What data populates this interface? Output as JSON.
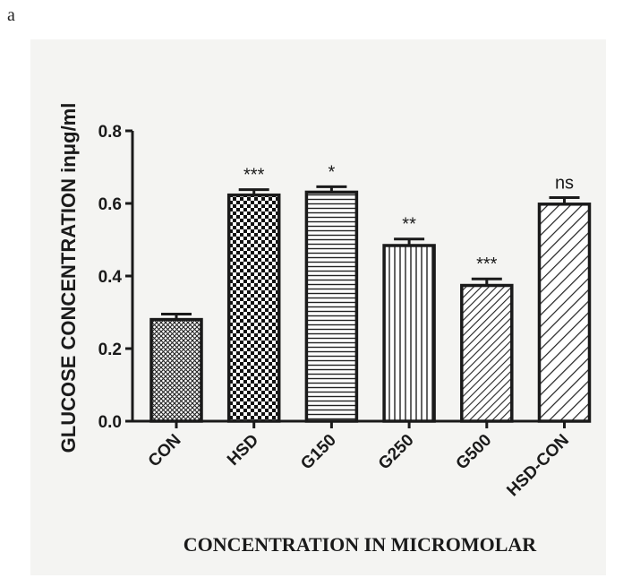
{
  "panel_label": "a",
  "chart_data": {
    "type": "bar",
    "categories": [
      "CON",
      "HSD",
      "G150",
      "G250",
      "G500",
      "HSD-CON"
    ],
    "values": [
      0.28,
      0.623,
      0.631,
      0.484,
      0.374,
      0.598
    ],
    "errors": [
      0.015,
      0.015,
      0.015,
      0.018,
      0.018,
      0.018
    ],
    "annotations": [
      "",
      "***",
      "*",
      "**",
      "***",
      "ns"
    ],
    "patterns": [
      "crosshatch-fine",
      "checkerboard",
      "horizontal-lines",
      "vertical-lines",
      "diagonal-lines",
      "diagonal-lines-wide"
    ],
    "ylabel": "GLUCOSE CONCENTRATION inμg/ml",
    "xlabel": "CONCENTRATION IN MICROMOLAR",
    "yticks": [
      "0.0",
      "0.2",
      "0.4",
      "0.6",
      "0.8"
    ],
    "ylim": [
      0,
      0.8
    ],
    "grid": false
  }
}
